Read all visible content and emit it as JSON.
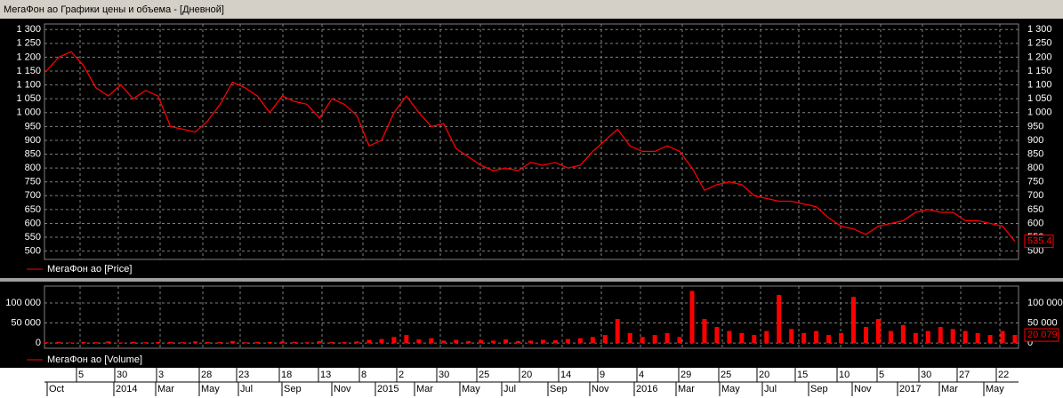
{
  "window_title": "МегаФон ао Графики цены и объема - [Дневной]",
  "chart_data": [
    {
      "type": "line",
      "legend": "МегаФон ао [Price]",
      "color": "#ff0000",
      "grid": true,
      "values": [
        1150,
        1200,
        1220,
        1170,
        1090,
        1060,
        1100,
        1050,
        1080,
        1060,
        950,
        940,
        930,
        970,
        1030,
        1110,
        1090,
        1060,
        1000,
        1060,
        1040,
        1030,
        980,
        1050,
        1030,
        990,
        880,
        900,
        1000,
        1060,
        1000,
        950,
        960,
        870,
        840,
        810,
        790,
        800,
        790,
        820,
        810,
        820,
        800,
        810,
        860,
        900,
        940,
        880,
        860,
        860,
        880,
        860,
        800,
        720,
        740,
        750,
        740,
        700,
        690,
        680,
        680,
        670,
        660,
        620,
        590,
        580,
        560,
        590,
        600,
        610,
        640,
        650,
        640,
        640,
        610,
        610,
        600,
        590,
        535.4
      ],
      "ylim": [
        470,
        1320
      ],
      "yticks": [
        {
          "value": 1300,
          "label": "1 300"
        },
        {
          "value": 1250,
          "label": "1 250"
        },
        {
          "value": 1200,
          "label": "1 200"
        },
        {
          "value": 1150,
          "label": "1 150"
        },
        {
          "value": 1100,
          "label": "1 100"
        },
        {
          "value": 1050,
          "label": "1 050"
        },
        {
          "value": 1000,
          "label": "1 000"
        },
        950,
        900,
        850,
        800,
        750,
        700,
        650,
        600,
        550,
        500
      ]
    },
    {
      "type": "bar",
      "legend": "МегаФон ао [Volume]",
      "color": "#ff0000",
      "grid": true,
      "values": [
        2000,
        3000,
        1500,
        2500,
        2000,
        4000,
        1500,
        3000,
        2000,
        2500,
        3000,
        2000,
        4000,
        2500,
        3000,
        5000,
        2000,
        3000,
        2500,
        4000,
        3000,
        2000,
        5000,
        3000,
        2500,
        4000,
        8000,
        10000,
        15000,
        20000,
        9000,
        12000,
        6000,
        8000,
        5000,
        7000,
        6000,
        9000,
        5000,
        6000,
        8000,
        7000,
        10000,
        12000,
        15000,
        20000,
        60000,
        25000,
        15000,
        20000,
        25000,
        15000,
        130000,
        60000,
        40000,
        30000,
        25000,
        20000,
        30000,
        120000,
        35000,
        25000,
        30000,
        20000,
        25000,
        115000,
        40000,
        60000,
        30000,
        45000,
        25000,
        30000,
        40000,
        35000,
        30000,
        25000,
        20000,
        30000,
        20079
      ],
      "last_value_label": "20 079",
      "ylim": [
        -13000,
        142000
      ],
      "yticks": [
        {
          "value": 100000,
          "label": "100 000"
        },
        {
          "value": 50000,
          "label": "50 000"
        },
        0
      ]
    }
  ],
  "date_axis": {
    "days": [
      "5",
      "30",
      "3",
      "28",
      "23",
      "18",
      "13",
      "8",
      "2",
      "30",
      "25",
      "20",
      "14",
      "9",
      "4",
      "29",
      "25",
      "20",
      "15",
      "10",
      "5",
      "30",
      "27",
      "22"
    ],
    "months": [
      "Oct",
      "2014",
      "Mar",
      "May",
      "Jul",
      "Sep",
      "Nov",
      "2015",
      "Mar",
      "May",
      "Jul",
      "Sep",
      "Nov",
      "2016",
      "Mar",
      "May",
      "Jul",
      "Sep",
      "Nov",
      "2017",
      "Mar",
      "May"
    ]
  }
}
